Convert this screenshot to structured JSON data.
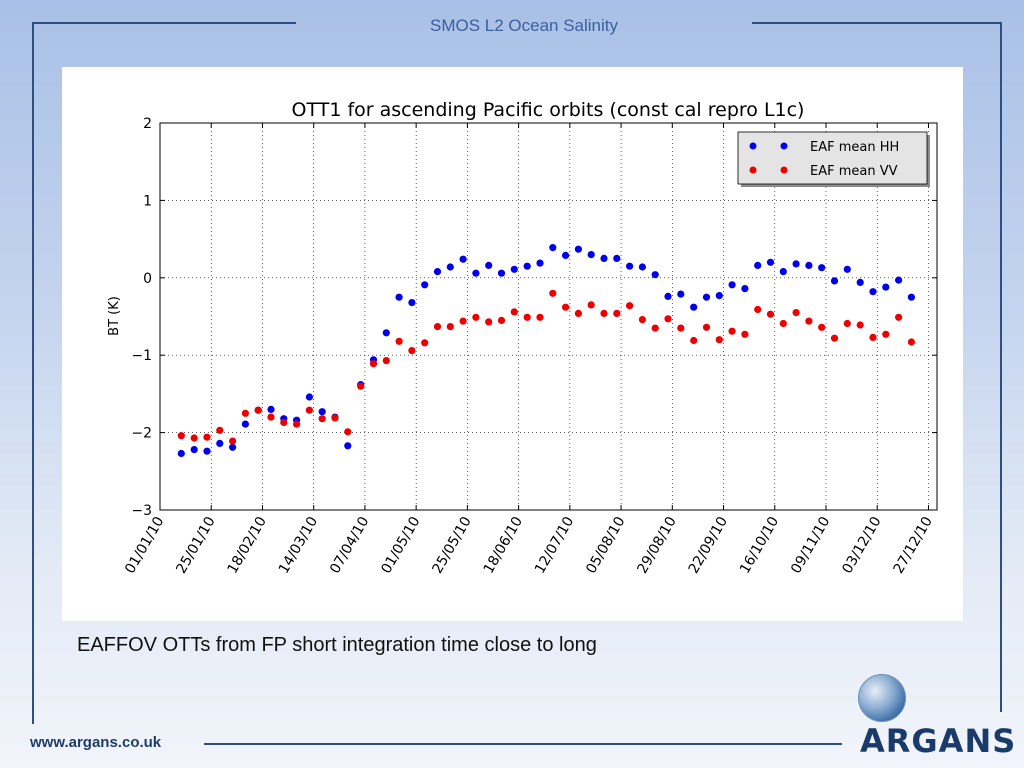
{
  "slide": {
    "title": "SMOS L2 Ocean Salinity",
    "caption": "EAFFOV OTTs from FP short integration time close to long",
    "footer_url": "www.argans.co.uk",
    "logo_text": "ARGANS"
  },
  "colors": {
    "frame": "#2f4e82",
    "hh": "#0000ee",
    "vv": "#ee0000"
  },
  "chart_data": {
    "type": "scatter",
    "title": "OTT1 for ascending Pacific orbits (const cal repro L1c)",
    "xlabel": "",
    "ylabel": "BT (K)",
    "ylim": [
      -3,
      2
    ],
    "xlim": [
      "2010-01-01",
      "2010-12-31"
    ],
    "yticks": [
      "−3",
      "−2",
      "−1",
      "0",
      "1",
      "2"
    ],
    "xtick_dates": [
      "2010-01-01",
      "2010-01-25",
      "2010-02-18",
      "2010-03-14",
      "2010-04-07",
      "2010-05-01",
      "2010-05-25",
      "2010-06-18",
      "2010-07-12",
      "2010-08-05",
      "2010-08-29",
      "2010-09-22",
      "2010-10-16",
      "2010-11-09",
      "2010-12-03",
      "2010-12-27"
    ],
    "xtick_labels": [
      "01/01/10",
      "25/01/10",
      "18/02/10",
      "14/03/10",
      "07/04/10",
      "01/05/10",
      "25/05/10",
      "18/06/10",
      "12/07/10",
      "05/08/10",
      "29/08/10",
      "22/09/10",
      "16/10/10",
      "09/11/10",
      "03/12/10",
      "27/12/10"
    ],
    "grid": true,
    "legend_position": "top-right",
    "series": [
      {
        "name": "EAF mean HH",
        "color": "#0000ee",
        "points": [
          [
            "2010-01-11",
            -2.27
          ],
          [
            "2010-01-17",
            -2.22
          ],
          [
            "2010-01-23",
            -2.24
          ],
          [
            "2010-01-29",
            -2.14
          ],
          [
            "2010-02-04",
            -2.19
          ],
          [
            "2010-02-10",
            -1.89
          ],
          [
            "2010-02-16",
            -1.71
          ],
          [
            "2010-02-22",
            -1.7
          ],
          [
            "2010-02-28",
            -1.82
          ],
          [
            "2010-03-06",
            -1.84
          ],
          [
            "2010-03-12",
            -1.54
          ],
          [
            "2010-03-18",
            -1.73
          ],
          [
            "2010-03-24",
            -1.8
          ],
          [
            "2010-03-30",
            -2.17
          ],
          [
            "2010-04-05",
            -1.38
          ],
          [
            "2010-04-11",
            -1.06
          ],
          [
            "2010-04-17",
            -0.71
          ],
          [
            "2010-04-23",
            -0.25
          ],
          [
            "2010-04-29",
            -0.32
          ],
          [
            "2010-05-05",
            -0.09
          ],
          [
            "2010-05-11",
            0.08
          ],
          [
            "2010-05-17",
            0.14
          ],
          [
            "2010-05-23",
            0.24
          ],
          [
            "2010-05-29",
            0.06
          ],
          [
            "2010-06-04",
            0.16
          ],
          [
            "2010-06-10",
            0.06
          ],
          [
            "2010-06-16",
            0.11
          ],
          [
            "2010-06-22",
            0.15
          ],
          [
            "2010-06-28",
            0.19
          ],
          [
            "2010-07-04",
            0.39
          ],
          [
            "2010-07-10",
            0.29
          ],
          [
            "2010-07-16",
            0.37
          ],
          [
            "2010-07-22",
            0.3
          ],
          [
            "2010-07-28",
            0.25
          ],
          [
            "2010-08-03",
            0.25
          ],
          [
            "2010-08-09",
            0.15
          ],
          [
            "2010-08-15",
            0.14
          ],
          [
            "2010-08-21",
            0.04
          ],
          [
            "2010-08-27",
            -0.24
          ],
          [
            "2010-09-02",
            -0.21
          ],
          [
            "2010-09-08",
            -0.38
          ],
          [
            "2010-09-14",
            -0.25
          ],
          [
            "2010-09-20",
            -0.23
          ],
          [
            "2010-09-26",
            -0.09
          ],
          [
            "2010-10-02",
            -0.14
          ],
          [
            "2010-10-08",
            0.16
          ],
          [
            "2010-10-14",
            0.2
          ],
          [
            "2010-10-20",
            0.08
          ],
          [
            "2010-10-26",
            0.18
          ],
          [
            "2010-11-01",
            0.16
          ],
          [
            "2010-11-07",
            0.13
          ],
          [
            "2010-11-13",
            -0.04
          ],
          [
            "2010-11-19",
            0.11
          ],
          [
            "2010-11-25",
            -0.06
          ],
          [
            "2010-12-01",
            -0.18
          ],
          [
            "2010-12-07",
            -0.12
          ],
          [
            "2010-12-13",
            -0.03
          ],
          [
            "2010-12-19",
            -0.25
          ]
        ]
      },
      {
        "name": "EAF mean VV",
        "color": "#ee0000",
        "points": [
          [
            "2010-01-11",
            -2.04
          ],
          [
            "2010-01-17",
            -2.07
          ],
          [
            "2010-01-23",
            -2.06
          ],
          [
            "2010-01-29",
            -1.97
          ],
          [
            "2010-02-04",
            -2.11
          ],
          [
            "2010-02-10",
            -1.75
          ],
          [
            "2010-02-16",
            -1.71
          ],
          [
            "2010-02-22",
            -1.8
          ],
          [
            "2010-02-28",
            -1.87
          ],
          [
            "2010-03-06",
            -1.89
          ],
          [
            "2010-03-12",
            -1.71
          ],
          [
            "2010-03-18",
            -1.82
          ],
          [
            "2010-03-24",
            -1.81
          ],
          [
            "2010-03-30",
            -1.99
          ],
          [
            "2010-04-05",
            -1.4
          ],
          [
            "2010-04-11",
            -1.11
          ],
          [
            "2010-04-17",
            -1.07
          ],
          [
            "2010-04-23",
            -0.82
          ],
          [
            "2010-04-29",
            -0.94
          ],
          [
            "2010-05-05",
            -0.84
          ],
          [
            "2010-05-11",
            -0.63
          ],
          [
            "2010-05-17",
            -0.63
          ],
          [
            "2010-05-23",
            -0.56
          ],
          [
            "2010-05-29",
            -0.51
          ],
          [
            "2010-06-04",
            -0.57
          ],
          [
            "2010-06-10",
            -0.55
          ],
          [
            "2010-06-16",
            -0.44
          ],
          [
            "2010-06-22",
            -0.51
          ],
          [
            "2010-06-28",
            -0.51
          ],
          [
            "2010-07-04",
            -0.2
          ],
          [
            "2010-07-10",
            -0.38
          ],
          [
            "2010-07-16",
            -0.46
          ],
          [
            "2010-07-22",
            -0.35
          ],
          [
            "2010-07-28",
            -0.46
          ],
          [
            "2010-08-03",
            -0.46
          ],
          [
            "2010-08-09",
            -0.36
          ],
          [
            "2010-08-15",
            -0.54
          ],
          [
            "2010-08-21",
            -0.65
          ],
          [
            "2010-08-27",
            -0.53
          ],
          [
            "2010-09-02",
            -0.65
          ],
          [
            "2010-09-08",
            -0.81
          ],
          [
            "2010-09-14",
            -0.64
          ],
          [
            "2010-09-20",
            -0.8
          ],
          [
            "2010-09-26",
            -0.69
          ],
          [
            "2010-10-02",
            -0.73
          ],
          [
            "2010-10-08",
            -0.41
          ],
          [
            "2010-10-14",
            -0.47
          ],
          [
            "2010-10-20",
            -0.59
          ],
          [
            "2010-10-26",
            -0.45
          ],
          [
            "2010-11-01",
            -0.56
          ],
          [
            "2010-11-07",
            -0.64
          ],
          [
            "2010-11-13",
            -0.78
          ],
          [
            "2010-11-19",
            -0.59
          ],
          [
            "2010-11-25",
            -0.61
          ],
          [
            "2010-12-01",
            -0.77
          ],
          [
            "2010-12-07",
            -0.73
          ],
          [
            "2010-12-13",
            -0.51
          ],
          [
            "2010-12-19",
            -0.83
          ]
        ]
      }
    ]
  }
}
